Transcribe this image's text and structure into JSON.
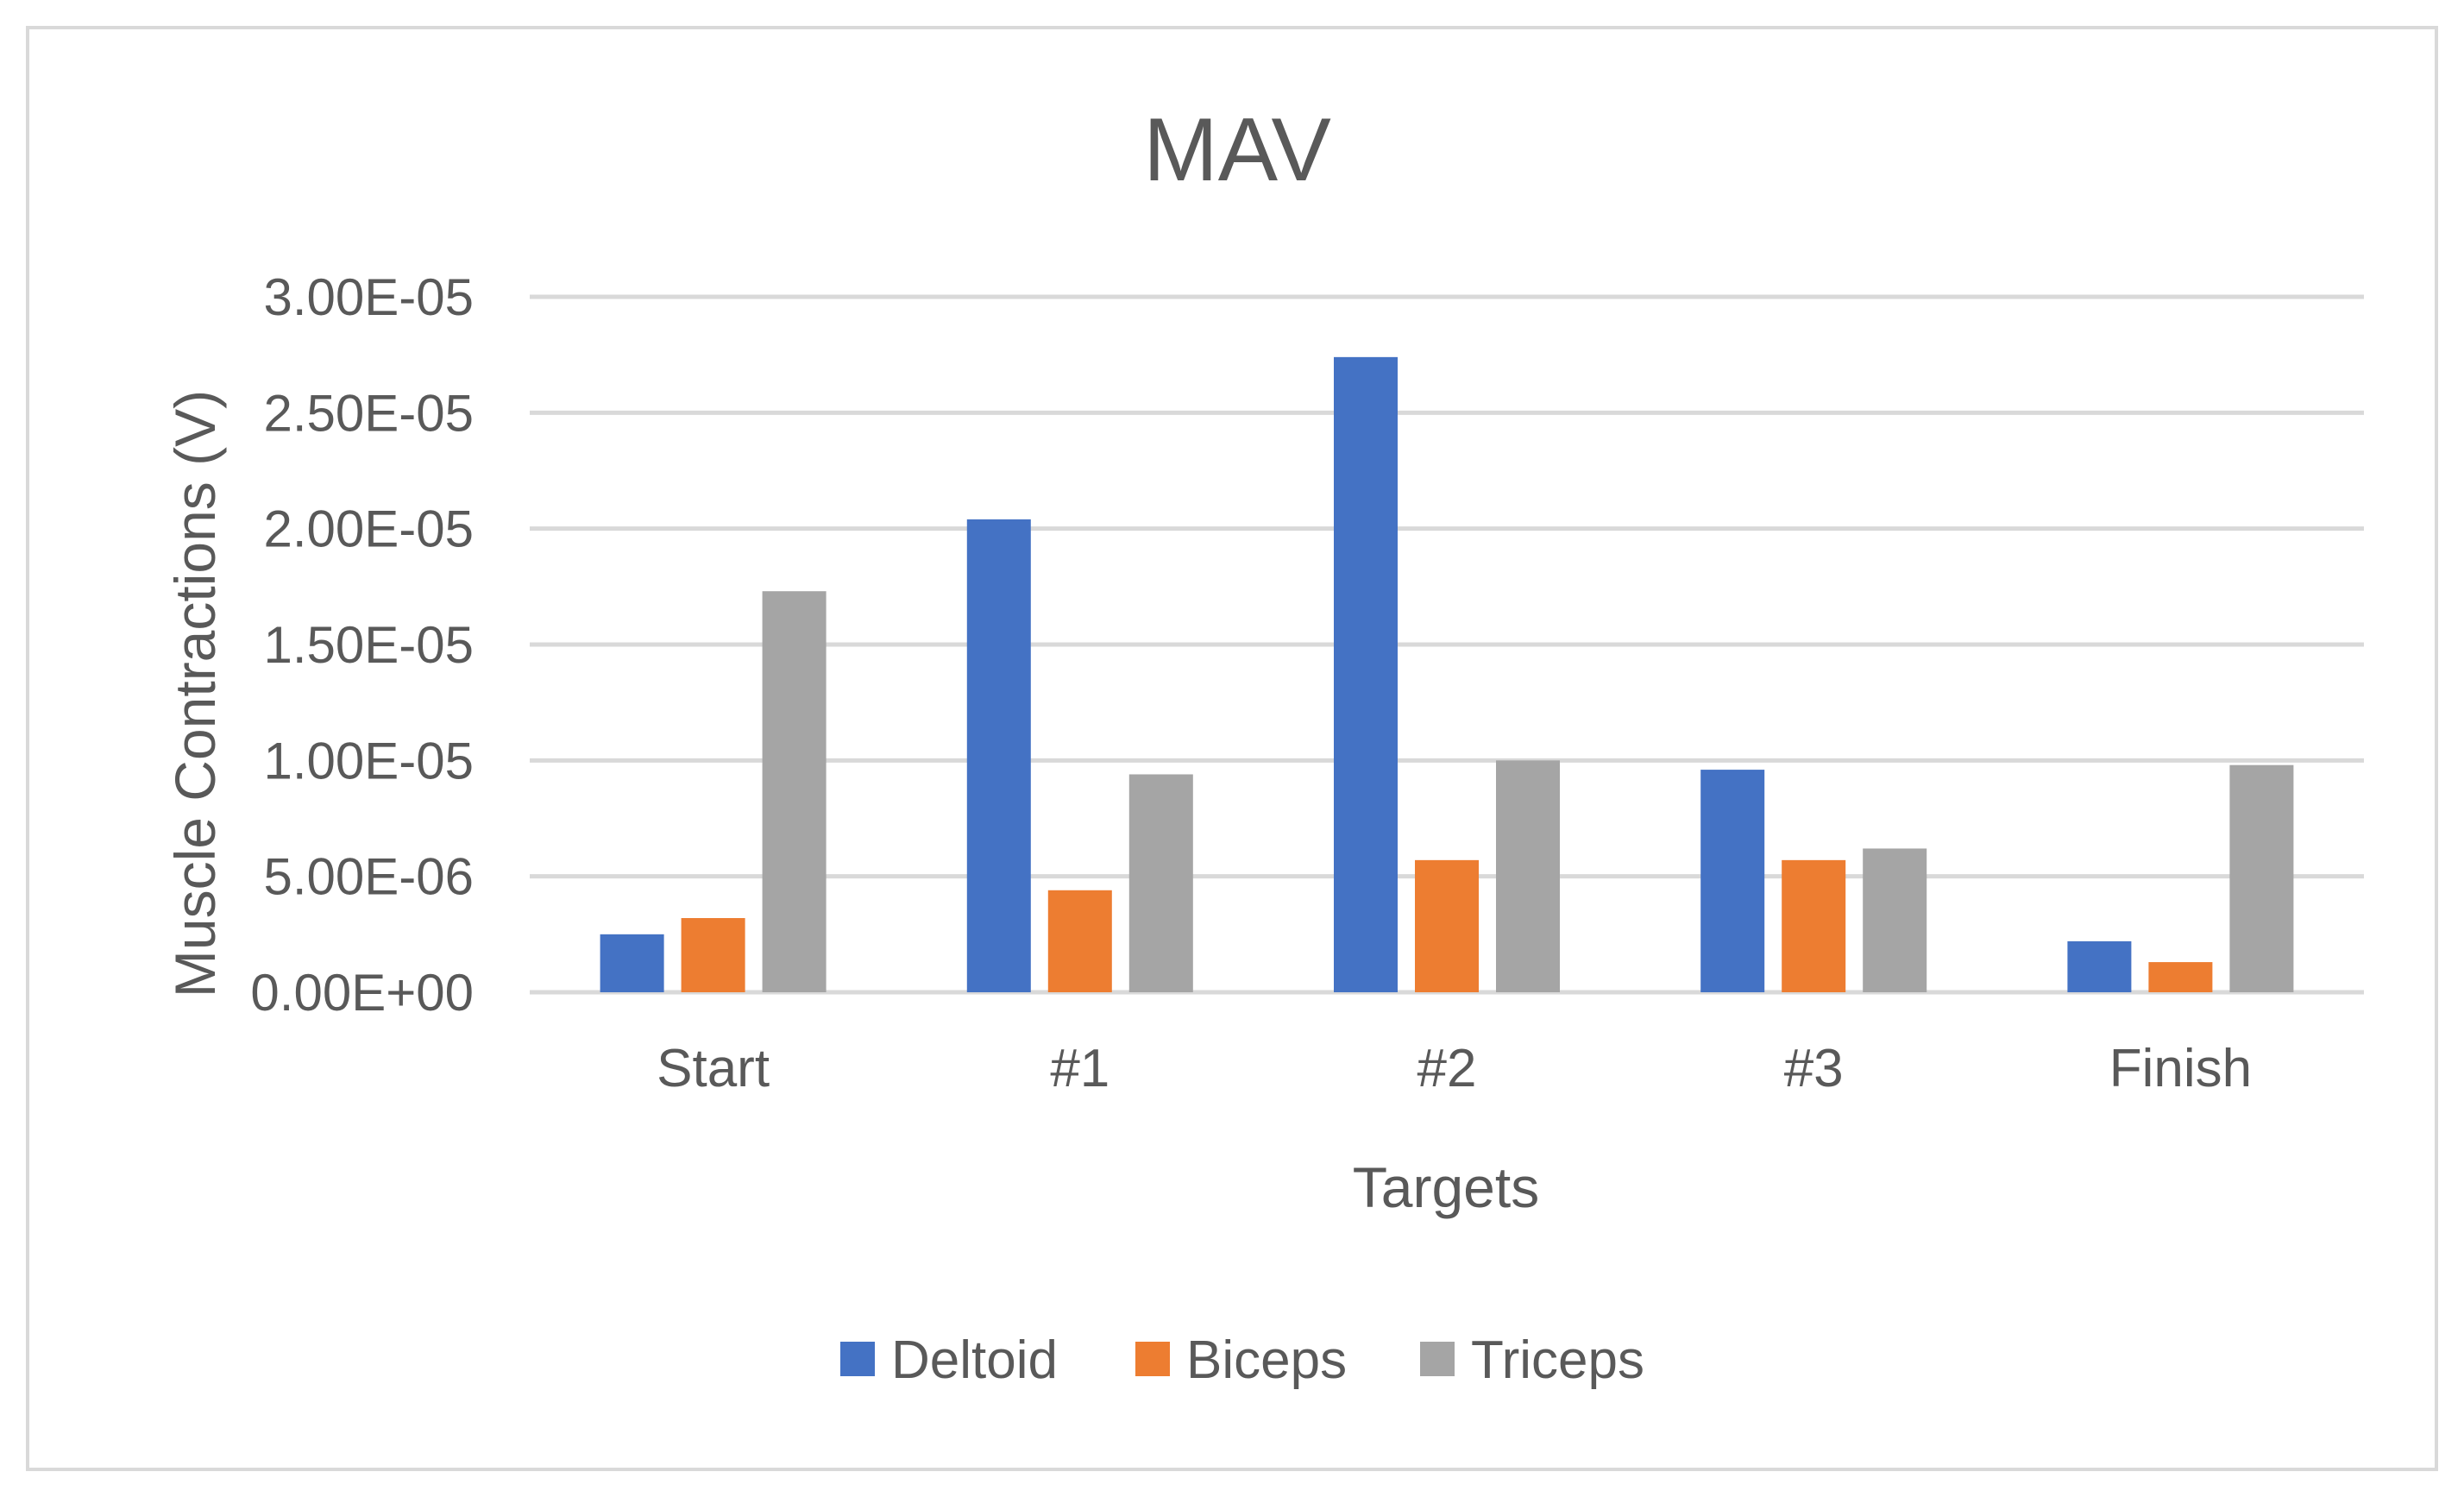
{
  "chart_data": {
    "type": "bar",
    "title": "MAV",
    "xlabel": "Targets",
    "ylabel": "Muscle Contractions (V)",
    "categories": [
      "Start",
      "#1",
      "#2",
      "#3",
      "Finish"
    ],
    "series": [
      {
        "name": "Deltoid",
        "color": "#4472c4",
        "values": [
          2.5e-06,
          2.04e-05,
          2.74e-05,
          9.6e-06,
          2.2e-06
        ]
      },
      {
        "name": "Biceps",
        "color": "#ed7d31",
        "values": [
          3.2e-06,
          4.4e-06,
          5.7e-06,
          5.7e-06,
          1.3e-06
        ]
      },
      {
        "name": "Triceps",
        "color": "#a5a5a5",
        "values": [
          1.73e-05,
          9.4e-06,
          1e-05,
          6.2e-06,
          9.8e-06
        ]
      }
    ],
    "ylim": [
      0,
      3e-05
    ],
    "yticks": [
      0,
      5e-06,
      1e-05,
      1.5e-05,
      2e-05,
      2.5e-05,
      3e-05
    ],
    "ytick_labels": [
      "0.00E+00",
      "5.00E-06",
      "1.00E-05",
      "1.50E-05",
      "2.00E-05",
      "2.50E-05",
      "3.00E-05"
    ],
    "grid": true,
    "legend_position": "bottom"
  }
}
